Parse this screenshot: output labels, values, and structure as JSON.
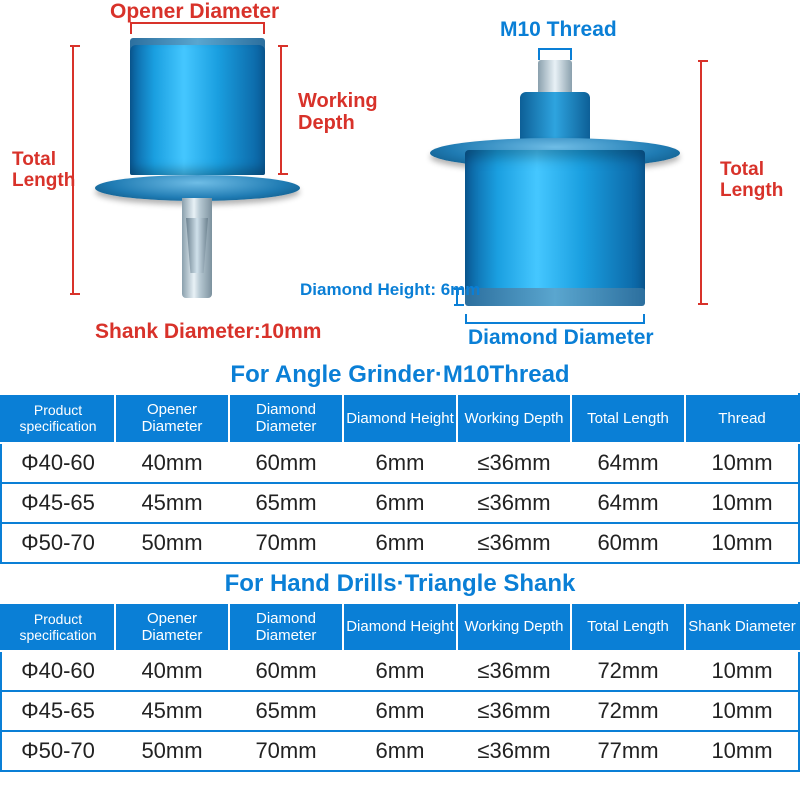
{
  "colors": {
    "accent_red": "#d8322a",
    "accent_blue": "#0a7fd6",
    "product_blue_light": "#45c7ff",
    "product_blue_dark": "#0a5f9e",
    "steel": "#b6c8d2",
    "table_header_bg": "#0a7fd6",
    "table_header_text": "#ffffff",
    "table_cell_text": "#222222",
    "table_border": "#0a7fd6",
    "background": "#ffffff"
  },
  "typography": {
    "label_fontsize_pt": 16,
    "label_fontweight": "bold",
    "section_title_fontsize_pt": 18,
    "table_header_fontsize_pt": 11,
    "table_cell_fontsize_pt": 16,
    "font_family": "Arial, sans-serif"
  },
  "diagram": {
    "left_product": {
      "labels": {
        "opener_diameter": "Opener Diameter",
        "working_depth": "Working Depth",
        "total_length": "Total Length",
        "shank_diameter": "Shank Diameter:10mm"
      }
    },
    "right_product": {
      "labels": {
        "m10_thread": "M10 Thread",
        "total_length": "Total Length",
        "diamond_height": "Diamond Height: 6mm",
        "diamond_diameter": "Diamond Diameter"
      }
    }
  },
  "tables": [
    {
      "title": "For Angle Grinder·M10Thread",
      "title_color": "#0a7fd6",
      "columns": [
        "Product specification",
        "Opener Diameter",
        "Diamond Diameter",
        "Diamond Height",
        "Working Depth",
        "Total Length",
        "Thread"
      ],
      "rows": [
        [
          "Φ40-60",
          "40mm",
          "60mm",
          "6mm",
          "≤36mm",
          "64mm",
          "10mm"
        ],
        [
          "Φ45-65",
          "45mm",
          "65mm",
          "6mm",
          "≤36mm",
          "64mm",
          "10mm"
        ],
        [
          "Φ50-70",
          "50mm",
          "70mm",
          "6mm",
          "≤36mm",
          "60mm",
          "10mm"
        ]
      ]
    },
    {
      "title": "For Hand Drills·Triangle Shank",
      "title_color": "#0a7fd6",
      "columns": [
        "Product specification",
        "Opener Diameter",
        "Diamond Diameter",
        "Diamond Height",
        "Working Depth",
        "Total Length",
        "Shank Diameter"
      ],
      "rows": [
        [
          "Φ40-60",
          "40mm",
          "60mm",
          "6mm",
          "≤36mm",
          "72mm",
          "10mm"
        ],
        [
          "Φ45-65",
          "45mm",
          "65mm",
          "6mm",
          "≤36mm",
          "72mm",
          "10mm"
        ],
        [
          "Φ50-70",
          "50mm",
          "70mm",
          "6mm",
          "≤36mm",
          "77mm",
          "10mm"
        ]
      ]
    }
  ]
}
